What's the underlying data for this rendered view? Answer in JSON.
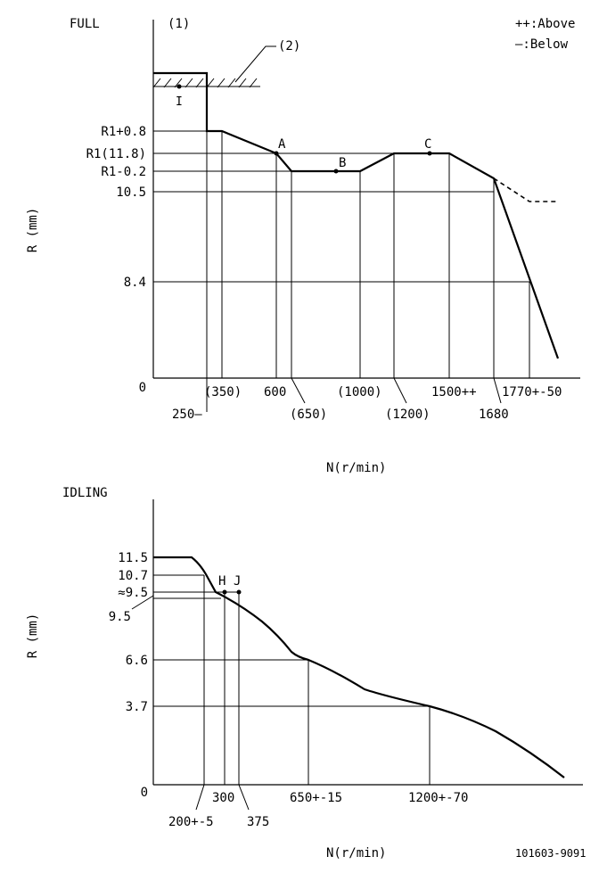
{
  "legend": {
    "above": "++:Above",
    "below": "—:Below"
  },
  "full": {
    "mode_label": "FULL",
    "note_1": "(1)",
    "note_2": "(2)",
    "point_i": "I",
    "y_axis_label": "R (mm)",
    "x_axis_label": "N(r/min)",
    "y_ticks": [
      "R1+0.8",
      "R1(11.8)",
      "R1-0.2",
      "10.5",
      "8.4",
      "0"
    ],
    "x_ticks": [
      "(350)",
      "250—",
      "600",
      "(650)",
      "(1000)",
      "(1200)",
      "1500++",
      "1680",
      "1770+-50"
    ],
    "point_labels": [
      "A",
      "B",
      "C"
    ]
  },
  "idling": {
    "mode_label": "IDLING",
    "y_axis_label": "R (mm)",
    "x_axis_label": "N(r/min)",
    "y_ticks": [
      "11.5",
      "10.7",
      "≈9.5",
      "9.5",
      "6.6",
      "3.7",
      "0"
    ],
    "x_ticks": [
      "200+-5",
      "300",
      "375",
      "650+-15",
      "1200+-70"
    ],
    "point_labels": [
      "H",
      "J"
    ]
  },
  "doc_number": "101603-9091"
}
